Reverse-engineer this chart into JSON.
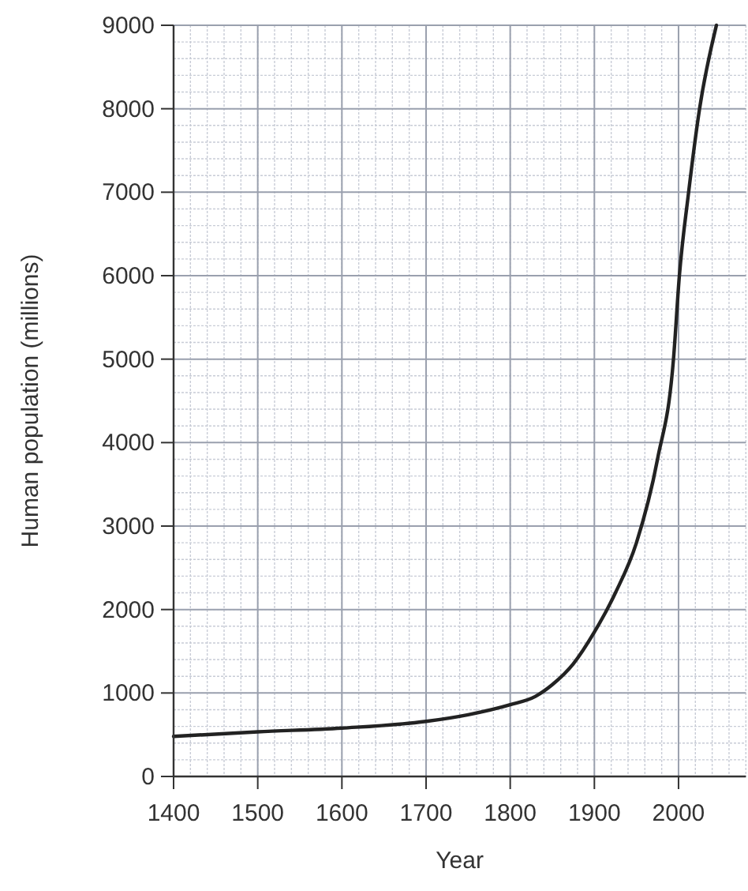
{
  "chart_data": {
    "type": "line",
    "xlabel": "Year",
    "ylabel": "Human population (millions)",
    "x": [
      1400,
      1500,
      1600,
      1700,
      1750,
      1800,
      1830,
      1850,
      1875,
      1900,
      1925,
      1950,
      1975,
      1994,
      2001,
      2012,
      2025,
      2045
    ],
    "series": [
      {
        "color": "#222222",
        "values": [
          480,
          535,
          580,
          660,
          740,
          860,
          960,
          1100,
          1350,
          1730,
          2200,
          2800,
          3800,
          5000,
          6000,
          7000,
          8000,
          9000
        ]
      }
    ],
    "xlim": [
      1400,
      2080
    ],
    "xticks": [
      1400,
      1500,
      1600,
      1700,
      1800,
      1900,
      2000
    ],
    "ylim": [
      0,
      9000
    ],
    "yticks": [
      0,
      1000,
      2000,
      3000,
      4000,
      5000,
      6000,
      7000,
      8000,
      9000
    ],
    "grid": true,
    "marker": "none",
    "line_style": "solid"
  }
}
